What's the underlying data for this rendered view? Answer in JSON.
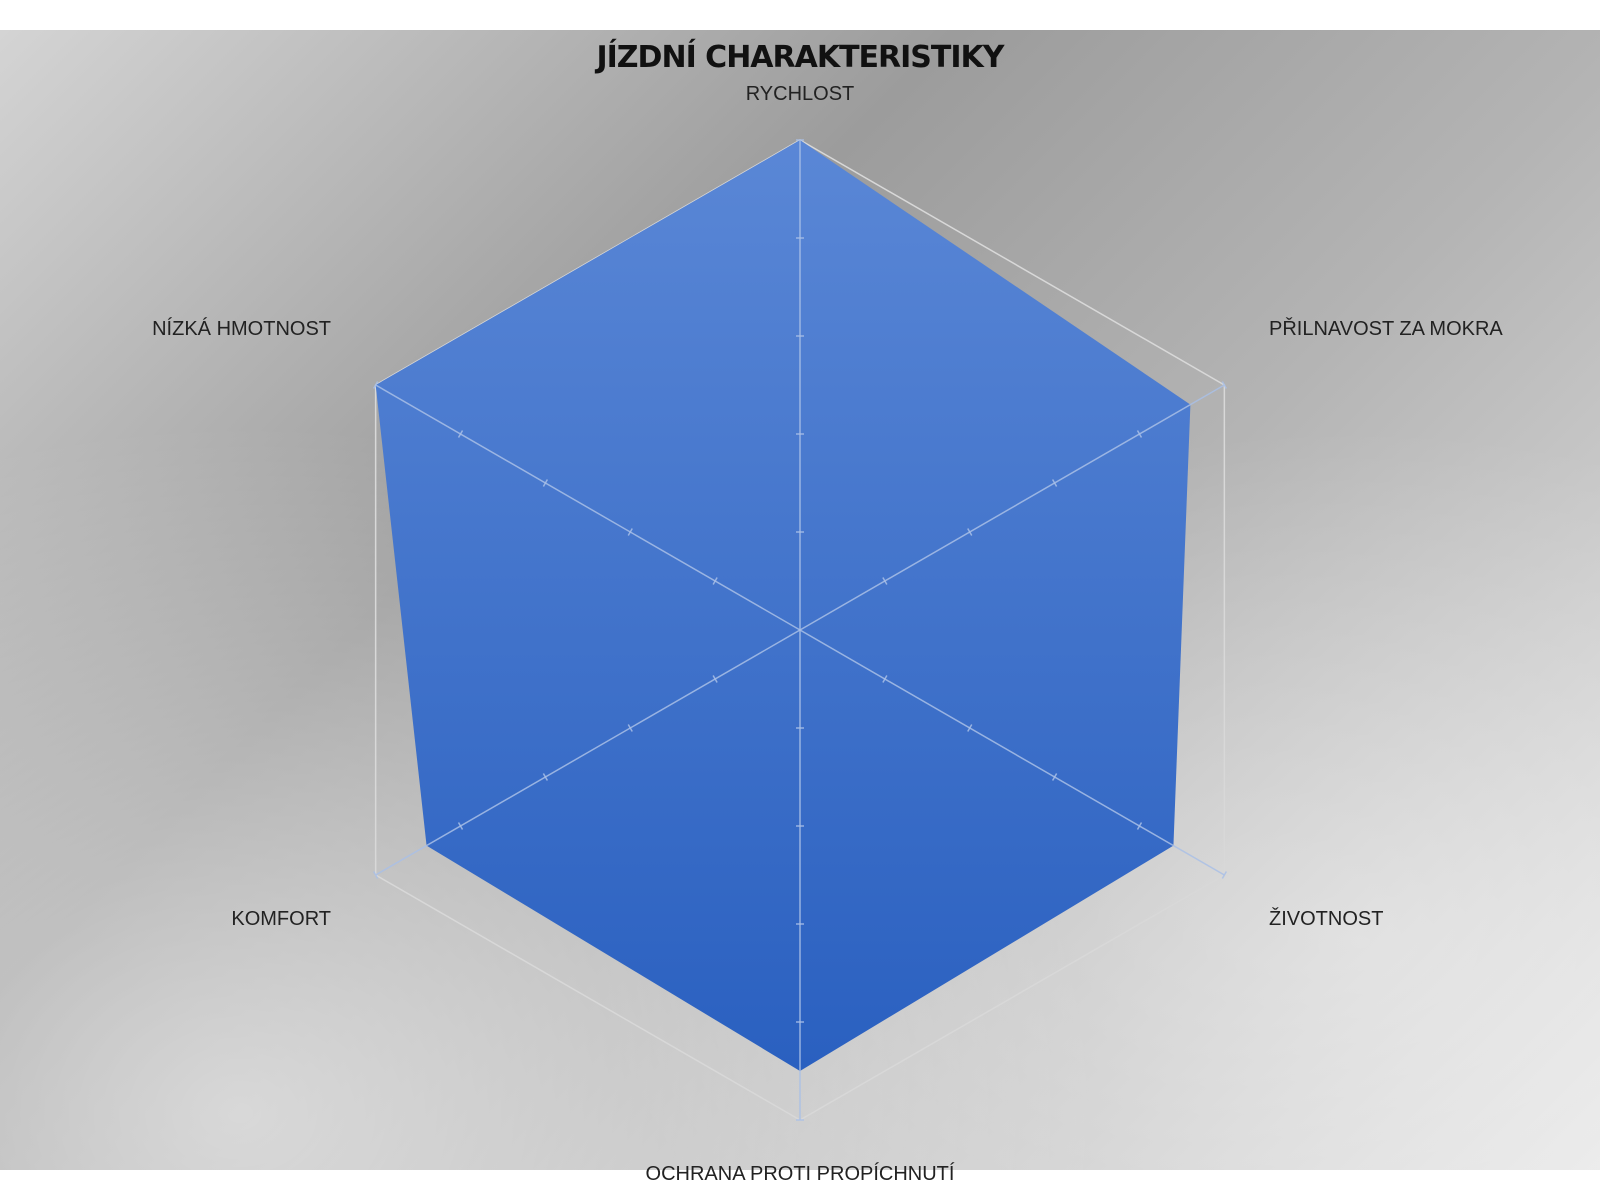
{
  "chart_data": {
    "type": "radar",
    "title": "JÍZDNÍ CHARAKTERISTIKY",
    "categories": [
      "RYCHLOST",
      "PŘILNAVOST ZA MOKRA",
      "ŽIVOTNOST",
      "OCHRANA PROTI PROPÍCHNUTÍ",
      "KOMFORT",
      "NÍZKÁ HMOTNOST"
    ],
    "series": [
      {
        "values": [
          5,
          4.6,
          4.4,
          4.5,
          4.4,
          5
        ],
        "color": "#3a6fcc"
      }
    ],
    "rlim": [
      0,
      5
    ],
    "tick_count": 5,
    "grid": true,
    "legend": "none",
    "colors": {
      "fill_top": "#5a87d6",
      "fill_bottom": "#2a60c0",
      "spoke": "#a9bfe6",
      "grid": "#d8d8d8"
    }
  }
}
